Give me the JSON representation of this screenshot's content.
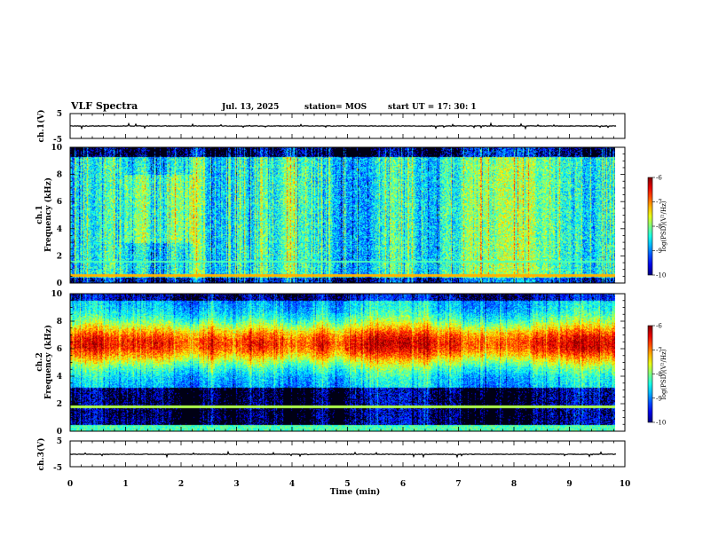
{
  "header": {
    "title": "VLF Spectra",
    "date": "Jul. 13, 2025",
    "station": "station= MOS",
    "start": "start UT = 17: 30: 1"
  },
  "chart_data": [
    {
      "type": "line",
      "name": "ch1-waveform",
      "ylabel": "ch.1(V)",
      "ylim": [
        -5,
        5
      ],
      "yticks": [
        "5",
        "-5"
      ],
      "xlim": [
        0,
        10
      ],
      "baseline": 0,
      "color": "#000000"
    },
    {
      "type": "heatmap",
      "name": "ch1-spectrogram",
      "ylabel_top": "ch.1",
      "ylabel": "Frequency (kHz)",
      "ylim": [
        0,
        10
      ],
      "yticks": [
        "0",
        "2",
        "4",
        "6",
        "8",
        "10"
      ],
      "xlim": [
        0,
        9.85
      ],
      "colorbar": {
        "label": "log(PSD)(V²/Hz)",
        "range": [
          -10,
          -6
        ],
        "ticks": [
          "-6",
          "-7",
          "-8",
          "-9",
          "-10"
        ]
      }
    },
    {
      "type": "heatmap",
      "name": "ch2-spectrogram",
      "ylabel_top": "ch.2",
      "ylabel": "Frequency (kHz)",
      "ylim": [
        0,
        10
      ],
      "yticks": [
        "0",
        "2",
        "4",
        "6",
        "8",
        "10"
      ],
      "xlim": [
        0,
        9.85
      ],
      "colorbar": {
        "label": "log(PSD)(V²/Hz)",
        "range": [
          -10,
          -6
        ],
        "ticks": [
          "-6",
          "-7",
          "-8",
          "-9",
          "-10"
        ]
      }
    },
    {
      "type": "line",
      "name": "ch3-waveform",
      "ylabel": "ch.3(V)",
      "ylim": [
        -5,
        5
      ],
      "yticks": [
        "5",
        "-5"
      ],
      "xlim": [
        0,
        10
      ],
      "baseline": 0,
      "color": "#000000"
    }
  ],
  "xaxis": {
    "label": "Time (min)",
    "range": [
      0,
      10
    ],
    "ticks": [
      "0",
      "1",
      "2",
      "3",
      "4",
      "5",
      "6",
      "7",
      "8",
      "9",
      "10"
    ]
  }
}
